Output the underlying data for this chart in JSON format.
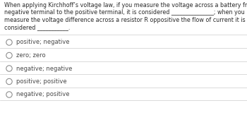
{
  "background_color": "#ffffff",
  "question_lines": [
    "When applying Kirchhoff’s voltage law, if you measure the voltage across a battery from the",
    "negative terminal to the positive terminal, it is considered _______________; when you",
    "measure the voltage difference across a resistor R oppositive the flow of current it is",
    "considered ___________."
  ],
  "options": [
    "positive; negative",
    "zero; zero",
    "negative; negative",
    "positive; positive",
    "negative; positive"
  ],
  "text_color": "#2b2b2b",
  "option_color": "#4a4a4a",
  "divider_color": "#cccccc",
  "font_size_question": 5.8,
  "font_size_option": 6.0,
  "circle_color": "#888888"
}
